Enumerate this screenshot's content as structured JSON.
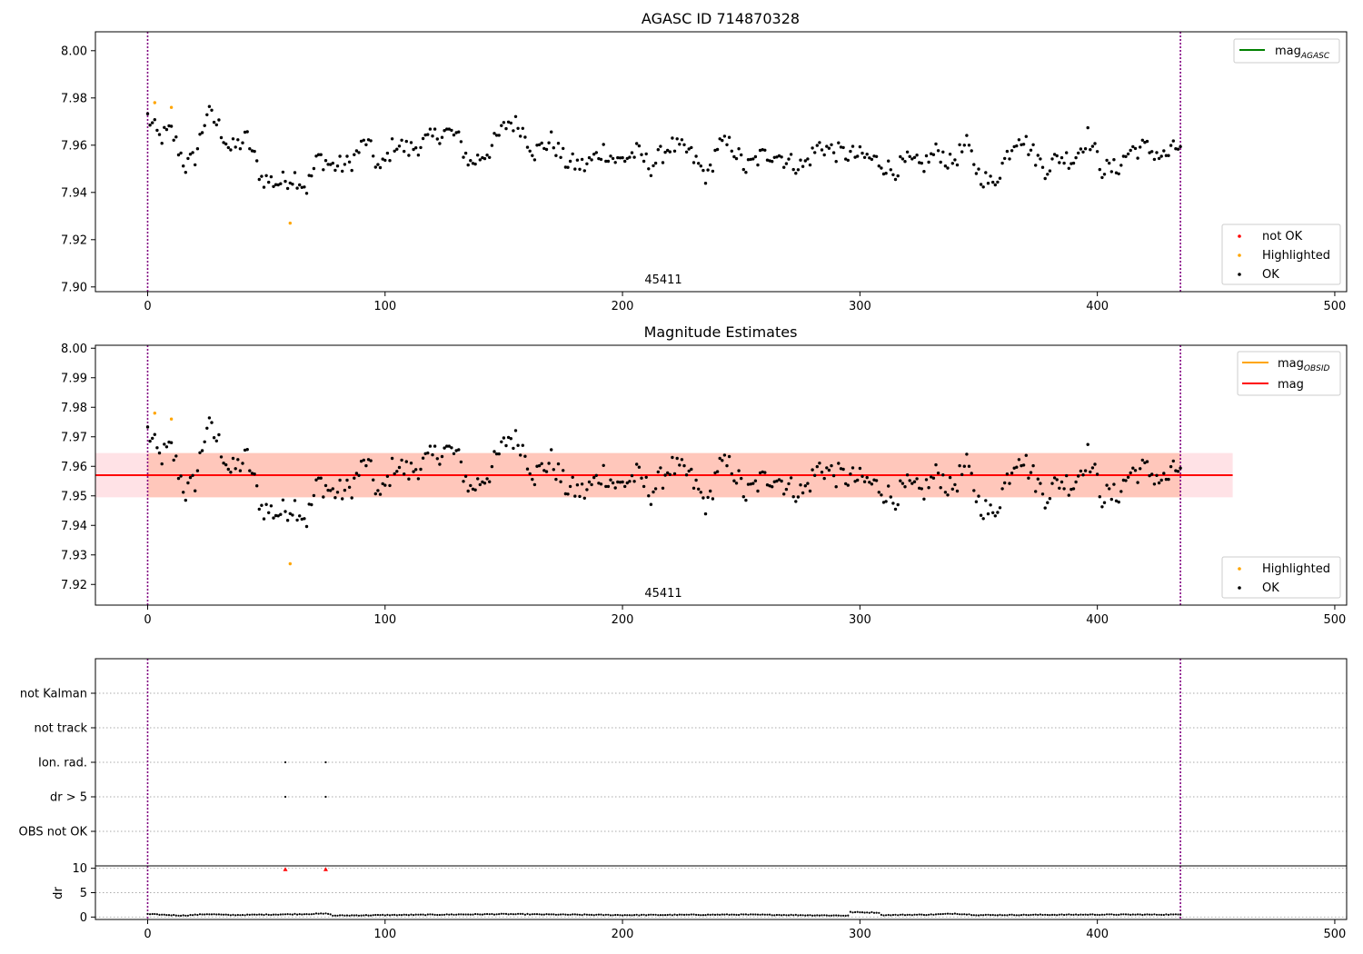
{
  "chart_data": [
    {
      "type": "scatter",
      "title": "AGASC ID 714870328",
      "xlim": [
        -22,
        505
      ],
      "ylim": [
        7.898,
        8.008
      ],
      "x_ticks": [
        0,
        100,
        200,
        300,
        400,
        500
      ],
      "y_ticks": [
        7.9,
        7.92,
        7.94,
        7.96,
        7.98,
        8.0
      ],
      "y_tick_labels": [
        "7.90",
        "7.92",
        "7.94",
        "7.96",
        "7.98",
        "8.00"
      ],
      "vlines": [
        0,
        435
      ],
      "obsid_label": {
        "text": "45411",
        "x": 217.5
      },
      "legend_lines": [
        {
          "base": "mag",
          "sub": "AGASC",
          "color": "#008000"
        }
      ],
      "legend_points": [
        {
          "label": "not OK",
          "color": "#ff0000"
        },
        {
          "label": "Highlighted",
          "color": "#ffa500"
        },
        {
          "label": "OK",
          "color": "#000000"
        }
      ],
      "legend_lines_position": "upper-right",
      "legend_points_position": "lower-right",
      "series": [
        {
          "group": "OK",
          "color": "#000000",
          "x_start": 0,
          "x_end": 435,
          "anchors": [
            [
              0,
              7.972
            ],
            [
              5,
              7.963
            ],
            [
              10,
              7.966
            ],
            [
              16,
              7.951
            ],
            [
              20,
              7.955
            ],
            [
              25,
              7.974
            ],
            [
              30,
              7.968
            ],
            [
              35,
              7.958
            ],
            [
              42,
              7.963
            ],
            [
              48,
              7.946
            ],
            [
              55,
              7.944
            ],
            [
              62,
              7.947
            ],
            [
              67,
              7.942
            ],
            [
              72,
              7.955
            ],
            [
              78,
              7.951
            ],
            [
              85,
              7.952
            ],
            [
              92,
              7.962
            ],
            [
              98,
              7.949
            ],
            [
              104,
              7.961
            ],
            [
              110,
              7.958
            ],
            [
              118,
              7.962
            ],
            [
              125,
              7.966
            ],
            [
              130,
              7.964
            ],
            [
              136,
              7.952
            ],
            [
              144,
              7.958
            ],
            [
              152,
              7.97
            ],
            [
              157,
              7.968
            ],
            [
              163,
              7.957
            ],
            [
              170,
              7.962
            ],
            [
              176,
              7.953
            ],
            [
              184,
              7.951
            ],
            [
              192,
              7.958
            ],
            [
              198,
              7.953
            ],
            [
              206,
              7.957
            ],
            [
              212,
              7.951
            ],
            [
              220,
              7.96
            ],
            [
              228,
              7.957
            ],
            [
              236,
              7.946
            ],
            [
              240,
              7.96
            ],
            [
              246,
              7.96
            ],
            [
              252,
              7.95
            ],
            [
              258,
              7.955
            ],
            [
              264,
              7.957
            ],
            [
              270,
              7.953
            ],
            [
              276,
              7.951
            ],
            [
              283,
              7.96
            ],
            [
              290,
              7.957
            ],
            [
              296,
              7.956
            ],
            [
              302,
              7.955
            ],
            [
              308,
              7.953
            ],
            [
              314,
              7.949
            ],
            [
              320,
              7.953
            ],
            [
              326,
              7.951
            ],
            [
              333,
              7.958
            ],
            [
              338,
              7.952
            ],
            [
              345,
              7.96
            ],
            [
              350,
              7.948
            ],
            [
              356,
              7.943
            ],
            [
              362,
              7.956
            ],
            [
              367,
              7.965
            ],
            [
              372,
              7.958
            ],
            [
              378,
              7.95
            ],
            [
              384,
              7.955
            ],
            [
              390,
              7.954
            ],
            [
              396,
              7.964
            ],
            [
              402,
              7.95
            ],
            [
              408,
              7.95
            ],
            [
              414,
              7.958
            ],
            [
              420,
              7.959
            ],
            [
              428,
              7.955
            ],
            [
              435,
              7.96
            ]
          ]
        },
        {
          "group": "Highlighted",
          "color": "#ffa500",
          "points": [
            [
              3,
              7.978
            ],
            [
              10,
              7.976
            ],
            [
              60,
              7.927
            ]
          ]
        }
      ]
    },
    {
      "type": "scatter",
      "title": "Magnitude Estimates",
      "xlim": [
        -22,
        505
      ],
      "ylim": [
        7.913,
        8.001
      ],
      "x_ticks": [
        0,
        100,
        200,
        300,
        400,
        500
      ],
      "y_ticks": [
        7.92,
        7.93,
        7.94,
        7.95,
        7.96,
        7.97,
        7.98,
        7.99,
        8.0
      ],
      "y_tick_labels": [
        "7.92",
        "7.93",
        "7.94",
        "7.95",
        "7.96",
        "7.97",
        "7.98",
        "7.99",
        "8.00"
      ],
      "vlines": [
        0,
        435
      ],
      "obsid_label": {
        "text": "45411",
        "x": 217.5
      },
      "mean_line": {
        "y": 7.957,
        "x0": -22,
        "x1": 457,
        "color": "#ff0000"
      },
      "bands": [
        {
          "x0": -22,
          "x1": 457,
          "y0": 7.9495,
          "y1": 7.9645,
          "color": "#ffb6c1",
          "opacity": 0.4
        },
        {
          "x0": 0,
          "x1": 435,
          "y0": 7.9495,
          "y1": 7.9645,
          "color": "#ffa07a",
          "opacity": 0.4
        }
      ],
      "legend_lines": [
        {
          "base": "mag",
          "sub": "OBSID",
          "color": "#ffa500"
        },
        {
          "base": "mag",
          "sub": "",
          "color": "#ff0000"
        }
      ],
      "legend_points": [
        {
          "label": "Highlighted",
          "color": "#ffa500"
        },
        {
          "label": "OK",
          "color": "#000000"
        }
      ],
      "legend_lines_position": "upper-right",
      "legend_points_position": "lower-right",
      "series": [
        {
          "group": "OK",
          "color": "#000000",
          "same_as_panel": 0
        },
        {
          "group": "Highlighted",
          "color": "#ffa500",
          "points": [
            [
              3,
              7.978
            ],
            [
              10,
              7.976
            ],
            [
              60,
              7.927
            ]
          ]
        }
      ]
    },
    {
      "type": "scatter",
      "title": "",
      "xlim": [
        -22,
        505
      ],
      "categories": [
        "OBS not OK",
        "dr > 5",
        "Ion. rad.",
        "not track",
        "not Kalman"
      ],
      "flag_points": [
        {
          "category": "Ion. rad.",
          "x": [
            58,
            75
          ]
        },
        {
          "category": "dr > 5",
          "x": [
            58,
            75
          ]
        }
      ],
      "vlines": [
        0,
        435
      ]
    },
    {
      "type": "scatter",
      "title": "",
      "ylabel": "dr",
      "xlim": [
        -22,
        505
      ],
      "ylim": [
        -0.5,
        10.5
      ],
      "x_ticks": [
        0,
        100,
        200,
        300,
        400,
        500
      ],
      "y_ticks": [
        0,
        5,
        10
      ],
      "y_tick_labels": [
        "0",
        "5",
        "10"
      ],
      "vlines": [
        0,
        435
      ],
      "dr_series": {
        "x_start": 0,
        "x_end": 435,
        "anchors": [
          [
            0,
            0.6
          ],
          [
            15,
            0.3
          ],
          [
            25,
            0.6
          ],
          [
            35,
            0.4
          ],
          [
            50,
            0.5
          ],
          [
            65,
            0.6
          ],
          [
            76,
            0.7
          ],
          [
            78,
            0.3
          ],
          [
            100,
            0.4
          ],
          [
            150,
            0.6
          ],
          [
            200,
            0.4
          ],
          [
            250,
            0.5
          ],
          [
            295,
            0.3
          ],
          [
            296,
            1.0
          ],
          [
            308,
            0.9
          ],
          [
            309,
            0.4
          ],
          [
            330,
            0.5
          ],
          [
            340,
            0.7
          ],
          [
            350,
            0.4
          ],
          [
            400,
            0.5
          ],
          [
            435,
            0.5
          ]
        ]
      },
      "dr_flags": {
        "x": [
          58,
          75
        ],
        "y": 9.8,
        "color": "#ff0000"
      }
    }
  ]
}
